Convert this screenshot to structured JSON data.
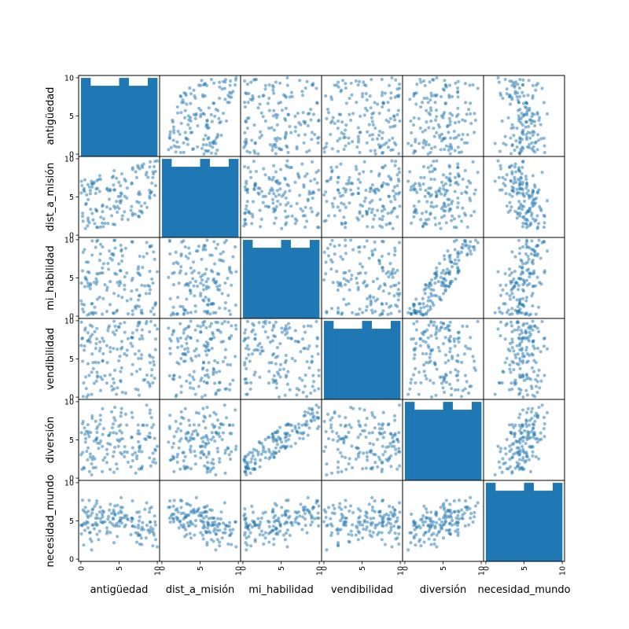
{
  "chart_data": {
    "type": "scatter",
    "variables": [
      "antigüedad",
      "dist_a_misión",
      "mi_habilidad",
      "vendibilidad",
      "diversión",
      "necesidad_mundo"
    ],
    "axis_range": [
      0,
      10
    ],
    "tick_values": [
      0,
      5,
      10
    ],
    "tick_labels": [
      "0",
      "5",
      "10"
    ],
    "diagonal": "histogram",
    "off_diagonal": "scatter",
    "n_points": 150,
    "histogram_bins": 8,
    "histogram_counts": [
      20,
      18,
      18,
      18,
      20,
      18,
      18,
      20
    ],
    "colors": {
      "histogram": "#1f77b4",
      "points": "#1f77b4",
      "point_opacity": 0.5,
      "frame": "#000000"
    },
    "correlations": {
      "dist_a_misión~necesidad_mundo": -0.45,
      "mi_habilidad~diversión": 0.6,
      "diversión~necesidad_mundo": 0.55,
      "mi_habilidad~necesidad_mundo": 0.35,
      "antigüedad~dist_a_misión": 0.2
    },
    "grid": false,
    "legend": "none"
  }
}
